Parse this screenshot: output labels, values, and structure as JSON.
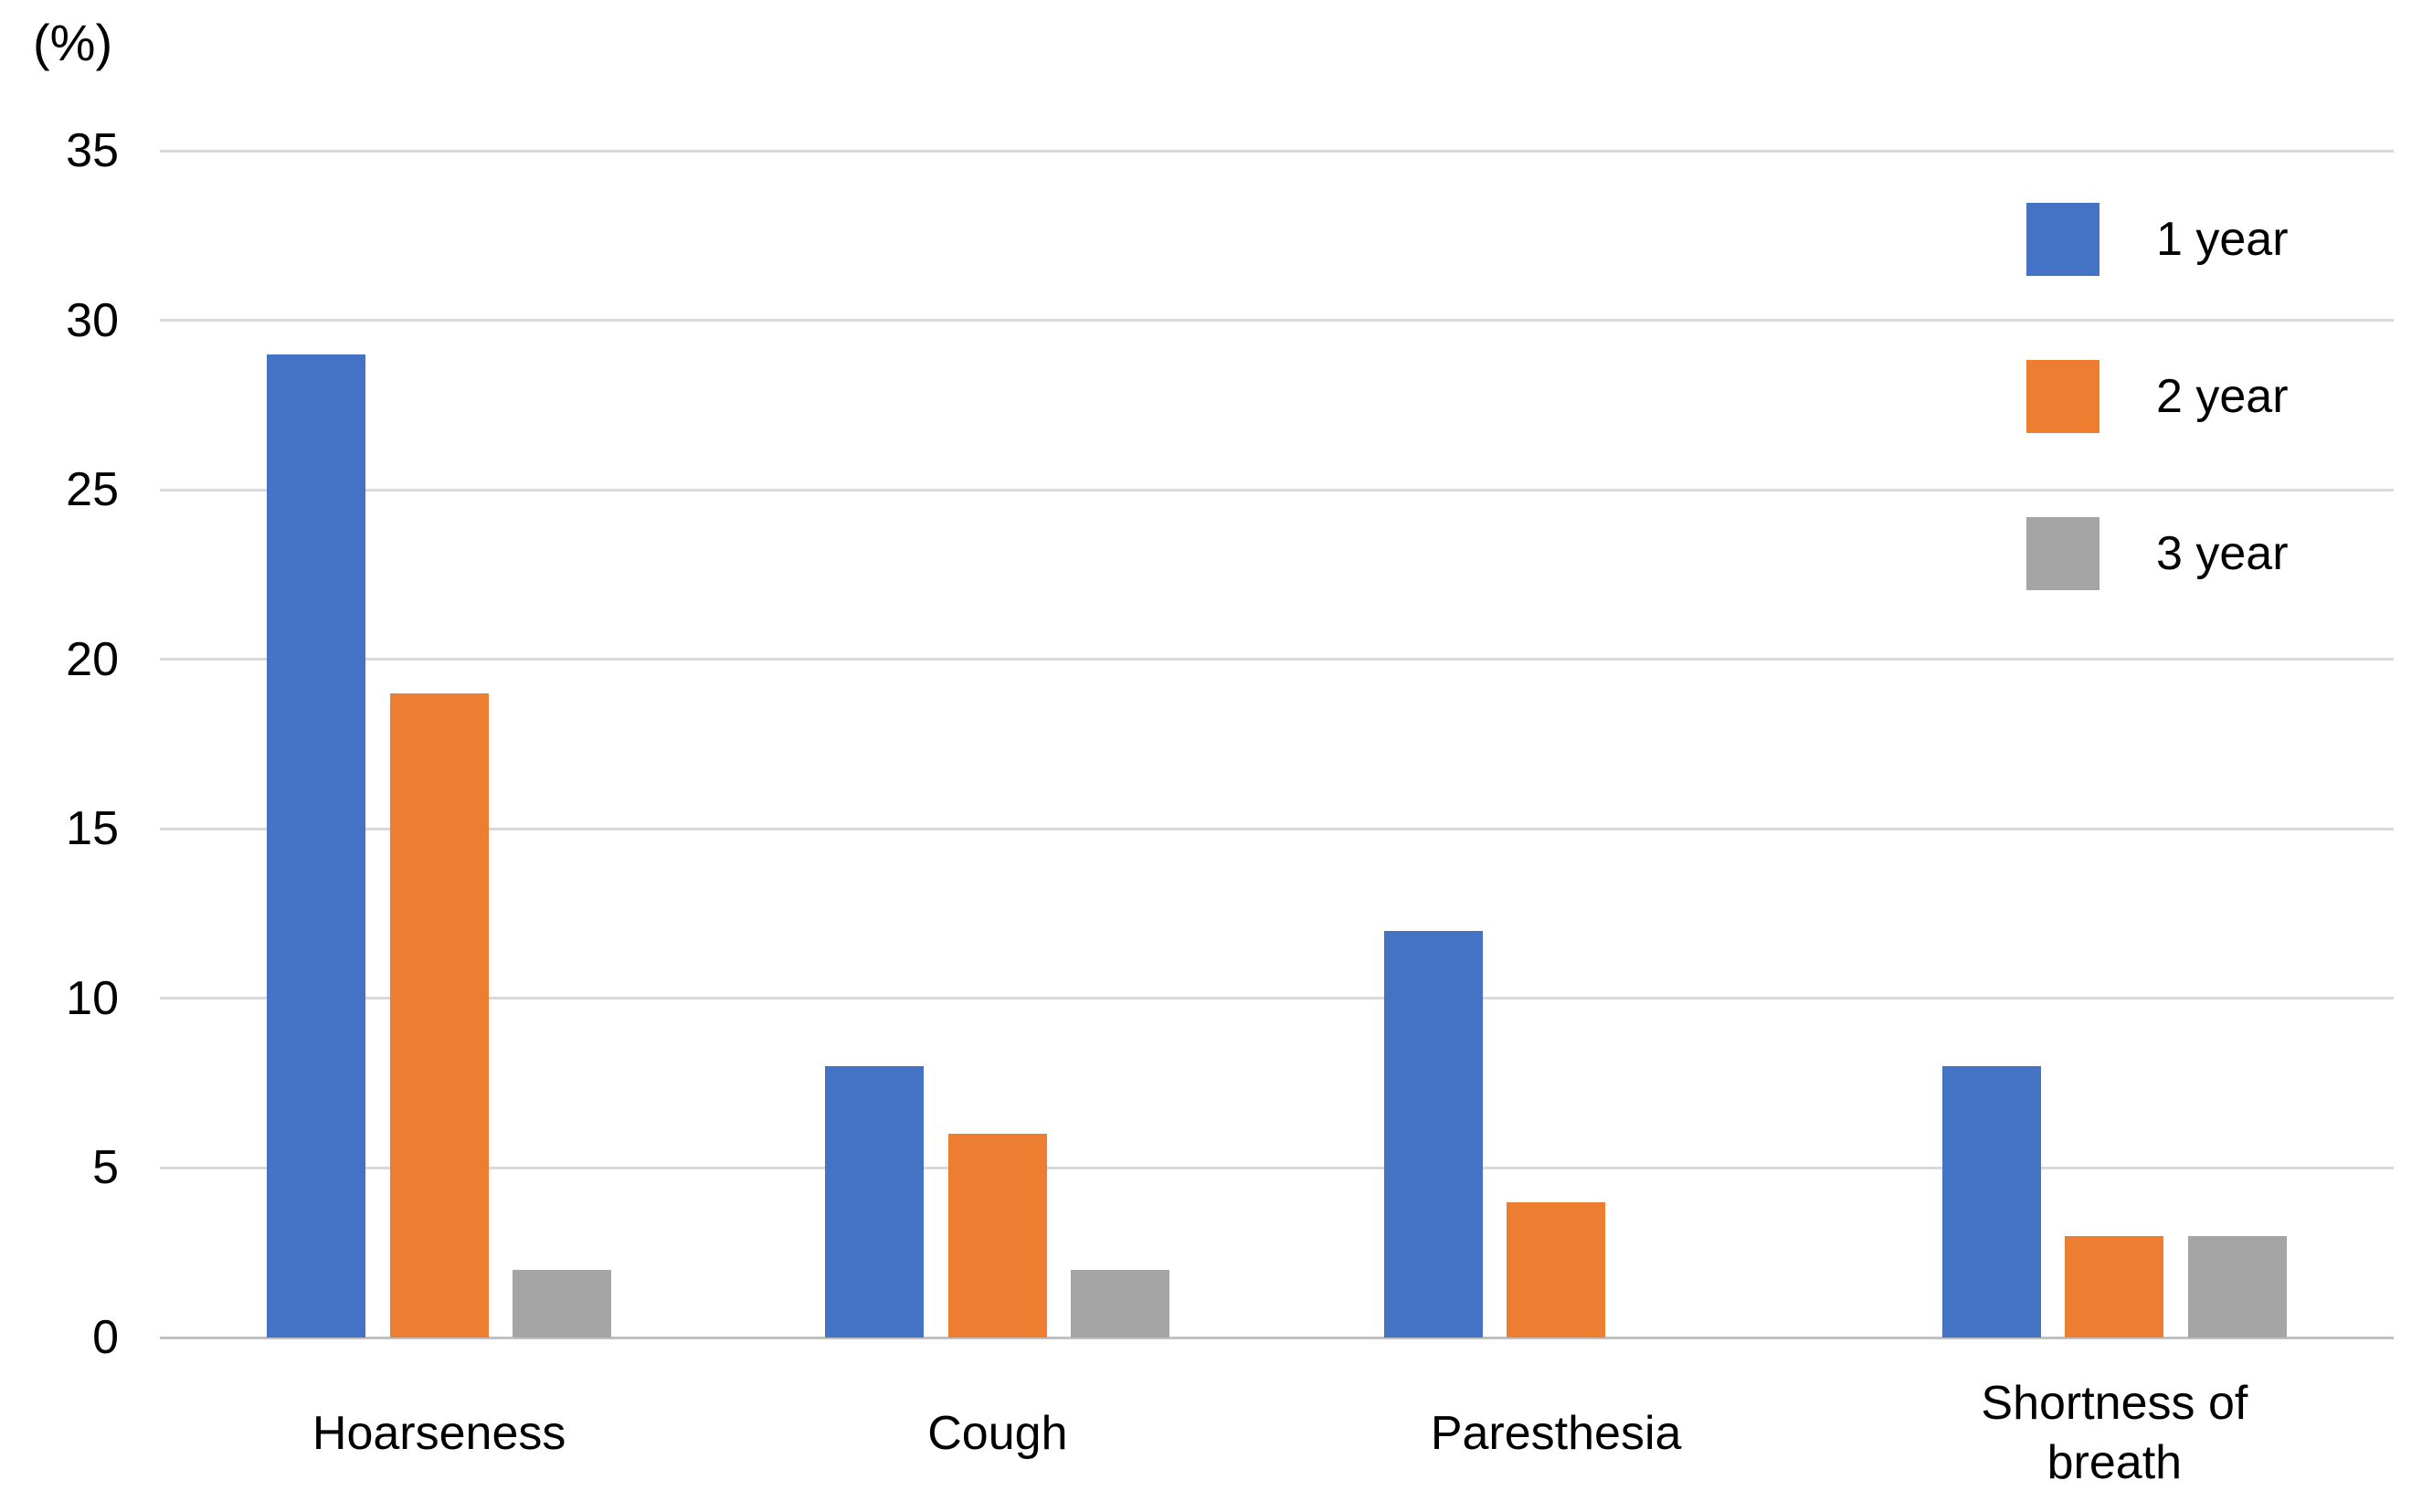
{
  "chart_data": {
    "type": "bar",
    "title": "",
    "unit_label": "(%)",
    "xlabel": "",
    "ylabel": "(%)",
    "categories": [
      "Hoarseness",
      "Cough",
      "Paresthesia",
      "Shortness of breath"
    ],
    "series": [
      {
        "name": "1 year",
        "color": "#4472C4",
        "values": [
          29,
          8,
          12,
          8
        ]
      },
      {
        "name": "2 year",
        "color": "#ED7D31",
        "values": [
          19,
          6,
          4,
          3
        ]
      },
      {
        "name": "3 year",
        "color": "#A5A5A5",
        "values": [
          2,
          2,
          0,
          3
        ]
      }
    ],
    "y_axis": {
      "min": 0,
      "max": 35,
      "tick_interval": 5,
      "ticks": [
        0,
        5,
        10,
        15,
        20,
        25,
        30,
        35
      ]
    },
    "grid": true,
    "legend_position": "top-right",
    "colors": {
      "background": "#FFFFFF",
      "gridline": "#D9D9D9",
      "axis_line": "#C0C0C0",
      "text": "#000000"
    }
  }
}
